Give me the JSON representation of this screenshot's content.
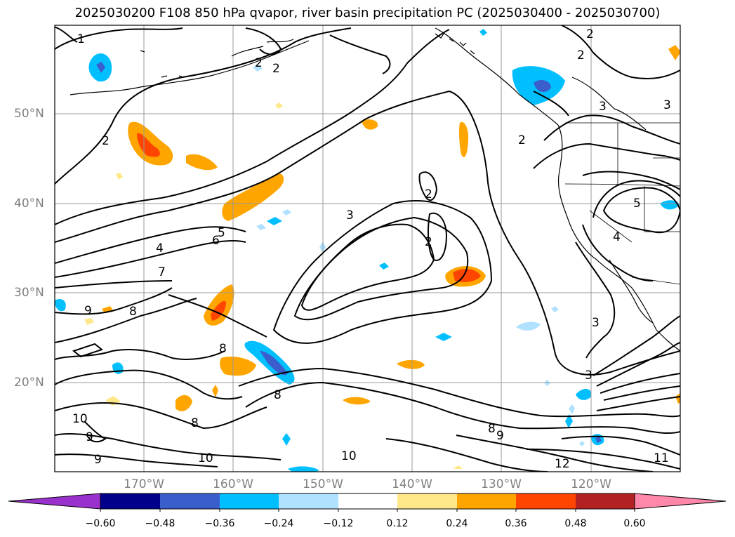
{
  "title": "2025030200 F108 850 hPa qvapor, river basin precipitation PC (2025030400 - 2025030700)",
  "lat_labels": [
    "50°N",
    "40°N",
    "30°N",
    "20°N"
  ],
  "lon_labels": [
    "170°W",
    "160°W",
    "150°W",
    "140°W",
    "130°W",
    "120°W"
  ],
  "contour_labels": [
    "1",
    "2",
    "2",
    "2",
    "2",
    "2",
    "2",
    "2",
    "2",
    "3",
    "3",
    "3",
    "3",
    "3",
    "4",
    "4",
    "5",
    "5",
    "6",
    "7",
    "8",
    "8",
    "8",
    "8",
    "8",
    "9",
    "9",
    "9",
    "9",
    "10",
    "10",
    "10",
    "11",
    "12"
  ],
  "colorbar": {
    "ticks": [
      "−0.60",
      "−0.48",
      "−0.36",
      "−0.24",
      "−0.12",
      "0.12",
      "0.24",
      "0.36",
      "0.48",
      "0.60"
    ],
    "colors": [
      "#9932cc",
      "#00008b",
      "#3a5fcd",
      "#00bfff",
      "#b0e2ff",
      "#ffffff",
      "#ffe88a",
      "#ffa500",
      "#ff4500",
      "#b22222",
      "#ff88aa"
    ]
  },
  "colors": {
    "contour": "#000000",
    "grid": "#999999",
    "coast": "#000000"
  }
}
